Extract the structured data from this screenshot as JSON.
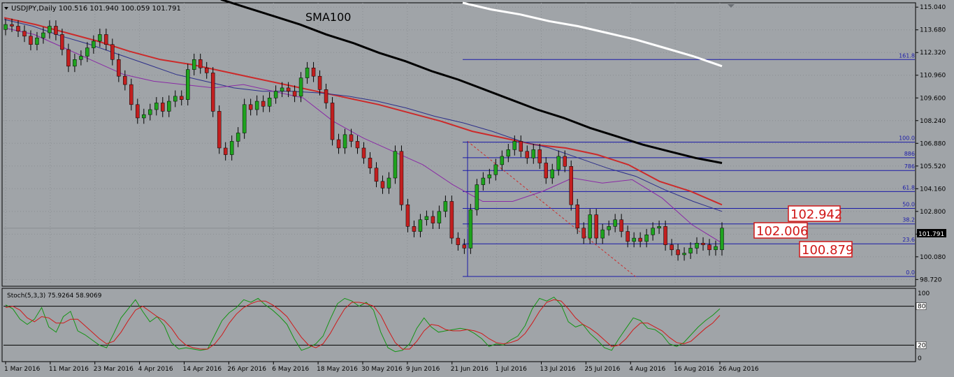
{
  "header": {
    "symbol_info": "USDJPY,Daily  100.516 101.940 100.059 101.791",
    "collapse_icon": "triangle-down-icon"
  },
  "annotations": {
    "sma_label": "SMA100",
    "price_boxes": [
      "102.942",
      "102.006",
      "100.879"
    ],
    "price_tag": "101.791"
  },
  "oscillator": {
    "label": "Stoch(5,3,3) 75.9264 58.9069",
    "levels": [
      "100",
      "80",
      "20",
      "0"
    ],
    "main": [
      82,
      76,
      60,
      52,
      60,
      78,
      48,
      40,
      64,
      72,
      42,
      36,
      28,
      20,
      16,
      38,
      62,
      76,
      90,
      72,
      56,
      64,
      50,
      24,
      14,
      16,
      14,
      12,
      14,
      36,
      58,
      70,
      78,
      90,
      86,
      92,
      82,
      74,
      64,
      52,
      30,
      12,
      16,
      22,
      34,
      60,
      84,
      92,
      88,
      80,
      86,
      74,
      40,
      16,
      10,
      12,
      22,
      46,
      62,
      48,
      40,
      42,
      44,
      46,
      44,
      38,
      30,
      18,
      22,
      20,
      28,
      34,
      50,
      76,
      92,
      88,
      94,
      82,
      56,
      48,
      52,
      38,
      28,
      16,
      12,
      30,
      46,
      62,
      58,
      46,
      44,
      36,
      22,
      18,
      24,
      36,
      48,
      58,
      66,
      76
    ],
    "signal": [
      78,
      80,
      74,
      62,
      56,
      64,
      62,
      54,
      54,
      60,
      60,
      50,
      40,
      30,
      22,
      26,
      40,
      58,
      74,
      80,
      72,
      64,
      58,
      46,
      30,
      20,
      16,
      14,
      14,
      22,
      36,
      54,
      68,
      78,
      84,
      88,
      88,
      82,
      74,
      64,
      48,
      32,
      20,
      16,
      22,
      38,
      58,
      76,
      86,
      86,
      84,
      80,
      66,
      44,
      24,
      14,
      14,
      26,
      42,
      52,
      50,
      44,
      42,
      42,
      44,
      42,
      38,
      30,
      24,
      22,
      24,
      28,
      38,
      54,
      72,
      86,
      90,
      88,
      76,
      62,
      52,
      46,
      38,
      28,
      18,
      20,
      30,
      44,
      54,
      54,
      48,
      42,
      32,
      24,
      22,
      26,
      36,
      46,
      54,
      66
    ]
  },
  "chart_data": [
    {
      "type": "candlestick",
      "title": "USDJPY,Daily",
      "x_axis_labels": [
        "1 Mar 2016",
        "11 Mar 2016",
        "23 Mar 2016",
        "4 Apr 2016",
        "14 Apr 2016",
        "26 Apr 2016",
        "6 May 2016",
        "18 May 2016",
        "30 May 2016",
        "9 Jun 2016",
        "21 Jun 2016",
        "1 Jul 2016",
        "13 Jul 2016",
        "25 Jul 2016",
        "4 Aug 2016",
        "16 Aug 2016",
        "26 Aug 2016"
      ],
      "y_axis_labels": [
        "115.040",
        "113.680",
        "112.320",
        "110.960",
        "109.600",
        "108.240",
        "106.880",
        "105.520",
        "104.160",
        "102.800",
        "101.440",
        "100.080",
        "98.720"
      ],
      "ylim": [
        98.4,
        115.3
      ],
      "last_price": 101.791,
      "close": [
        114.0,
        113.9,
        113.6,
        113.3,
        112.8,
        113.2,
        113.5,
        113.9,
        113.4,
        112.5,
        111.5,
        111.9,
        112.1,
        112.6,
        113.0,
        113.4,
        112.8,
        111.9,
        110.9,
        110.4,
        109.2,
        108.4,
        108.6,
        108.9,
        109.3,
        108.8,
        109.4,
        109.7,
        109.5,
        111.3,
        111.9,
        111.4,
        111.1,
        108.8,
        106.6,
        106.2,
        107.0,
        107.5,
        109.2,
        108.9,
        109.4,
        109.1,
        109.6,
        110.0,
        110.2,
        110.0,
        109.7,
        110.8,
        111.4,
        110.9,
        110.1,
        109.3,
        107.1,
        106.6,
        107.4,
        107.0,
        106.6,
        106.0,
        105.4,
        104.6,
        104.2,
        104.8,
        106.4,
        103.2,
        101.9,
        101.6,
        102.3,
        102.5,
        102.1,
        102.8,
        103.4,
        101.2,
        100.8,
        100.6,
        102.9,
        104.4,
        104.8,
        105.0,
        105.6,
        106.1,
        106.5,
        107.0,
        106.4,
        106.0,
        106.5,
        105.7,
        104.8,
        105.3,
        106.1,
        105.5,
        103.2,
        101.8,
        101.2,
        102.6,
        101.2,
        101.7,
        101.9,
        102.3,
        101.6,
        101.0,
        101.2,
        101.0,
        101.4,
        101.8,
        101.9,
        100.8,
        100.5,
        100.2,
        100.3,
        100.6,
        100.9,
        100.8,
        100.5,
        100.7,
        101.8
      ],
      "open": [
        113.7,
        114.0,
        113.9,
        113.6,
        113.3,
        112.8,
        113.2,
        113.5,
        113.9,
        113.4,
        112.5,
        111.5,
        111.9,
        112.1,
        112.6,
        113.0,
        113.4,
        112.8,
        111.9,
        110.9,
        110.4,
        109.2,
        108.4,
        108.6,
        108.9,
        109.3,
        108.8,
        109.4,
        109.7,
        109.5,
        111.3,
        111.9,
        111.4,
        111.1,
        108.8,
        106.6,
        106.2,
        107.0,
        107.5,
        109.2,
        108.9,
        109.4,
        109.1,
        109.6,
        110.0,
        110.2,
        110.0,
        109.7,
        110.8,
        111.4,
        110.9,
        110.1,
        109.3,
        107.1,
        106.6,
        107.4,
        107.0,
        106.6,
        106.0,
        105.4,
        104.6,
        104.2,
        104.8,
        106.4,
        103.2,
        101.9,
        101.6,
        102.3,
        102.5,
        102.1,
        102.8,
        103.4,
        101.2,
        100.8,
        100.6,
        102.9,
        104.4,
        104.8,
        105.0,
        105.6,
        106.1,
        106.5,
        107.0,
        106.4,
        106.0,
        106.5,
        105.7,
        104.8,
        105.3,
        106.1,
        105.5,
        103.2,
        101.8,
        101.2,
        102.6,
        101.2,
        101.7,
        101.9,
        102.3,
        101.6,
        101.0,
        101.2,
        101.0,
        101.4,
        101.8,
        101.9,
        100.8,
        100.5,
        100.2,
        100.3,
        100.6,
        100.9,
        100.8,
        100.5,
        100.5
      ],
      "series": [
        {
          "name": "SMA100",
          "color": "#000000",
          "values": [
            115.5,
            115.0,
            114.5,
            114.0,
            113.4,
            112.9,
            112.3,
            111.8,
            111.2,
            110.7,
            110.1,
            109.5,
            108.9,
            108.4,
            107.8,
            107.3,
            106.8,
            106.4,
            106.0,
            105.7
          ]
        },
        {
          "name": "",
          "color": "#ffffff",
          "values": [
            115.3,
            114.9,
            114.6,
            114.2,
            113.9,
            113.5,
            113.1,
            112.6,
            112.1,
            111.5
          ]
        },
        {
          "name": "",
          "color": "#cc2a2a",
          "values": [
            114.4,
            114.0,
            113.5,
            113.0,
            112.4,
            111.9,
            111.6,
            111.2,
            110.8,
            110.4,
            110.0,
            109.6,
            109.2,
            108.7,
            108.2,
            107.6,
            107.2,
            106.8,
            106.6,
            106.2,
            105.6,
            104.6,
            104.0,
            103.2
          ]
        },
        {
          "name": "",
          "color": "#2d2f8a",
          "values": [
            114.3,
            113.9,
            113.3,
            112.8,
            112.2,
            111.6,
            111.0,
            110.6,
            110.2,
            110.0,
            110.0,
            109.9,
            109.7,
            109.4,
            109.0,
            108.5,
            108.1,
            107.6,
            107.0,
            106.6,
            106.0,
            105.4,
            104.9,
            104.1,
            103.4,
            102.8
          ]
        },
        {
          "name": "",
          "color": "#8a2aa6",
          "values": [
            113.8,
            113.4,
            112.6,
            111.8,
            111.0,
            110.6,
            110.4,
            110.2,
            110.4,
            110.0,
            109.6,
            108.2,
            107.2,
            106.4,
            105.6,
            104.4,
            103.4,
            103.4,
            104.0,
            104.8,
            104.5,
            104.7,
            103.6,
            102.0,
            100.9
          ]
        }
      ],
      "fibonacci": [
        {
          "level": "161.8",
          "price": 111.9
        },
        {
          "level": "100.0",
          "price": 106.95
        },
        {
          "level": "886",
          "price": 106.02
        },
        {
          "level": "786",
          "price": 105.25
        },
        {
          "level": "61.8",
          "price": 103.99
        },
        {
          "level": "50.0",
          "price": 102.98
        },
        {
          "level": "38.2",
          "price": 102.05
        },
        {
          "level": "23.6",
          "price": 100.86
        },
        {
          "level": "0.0",
          "price": 98.9
        }
      ]
    }
  ]
}
